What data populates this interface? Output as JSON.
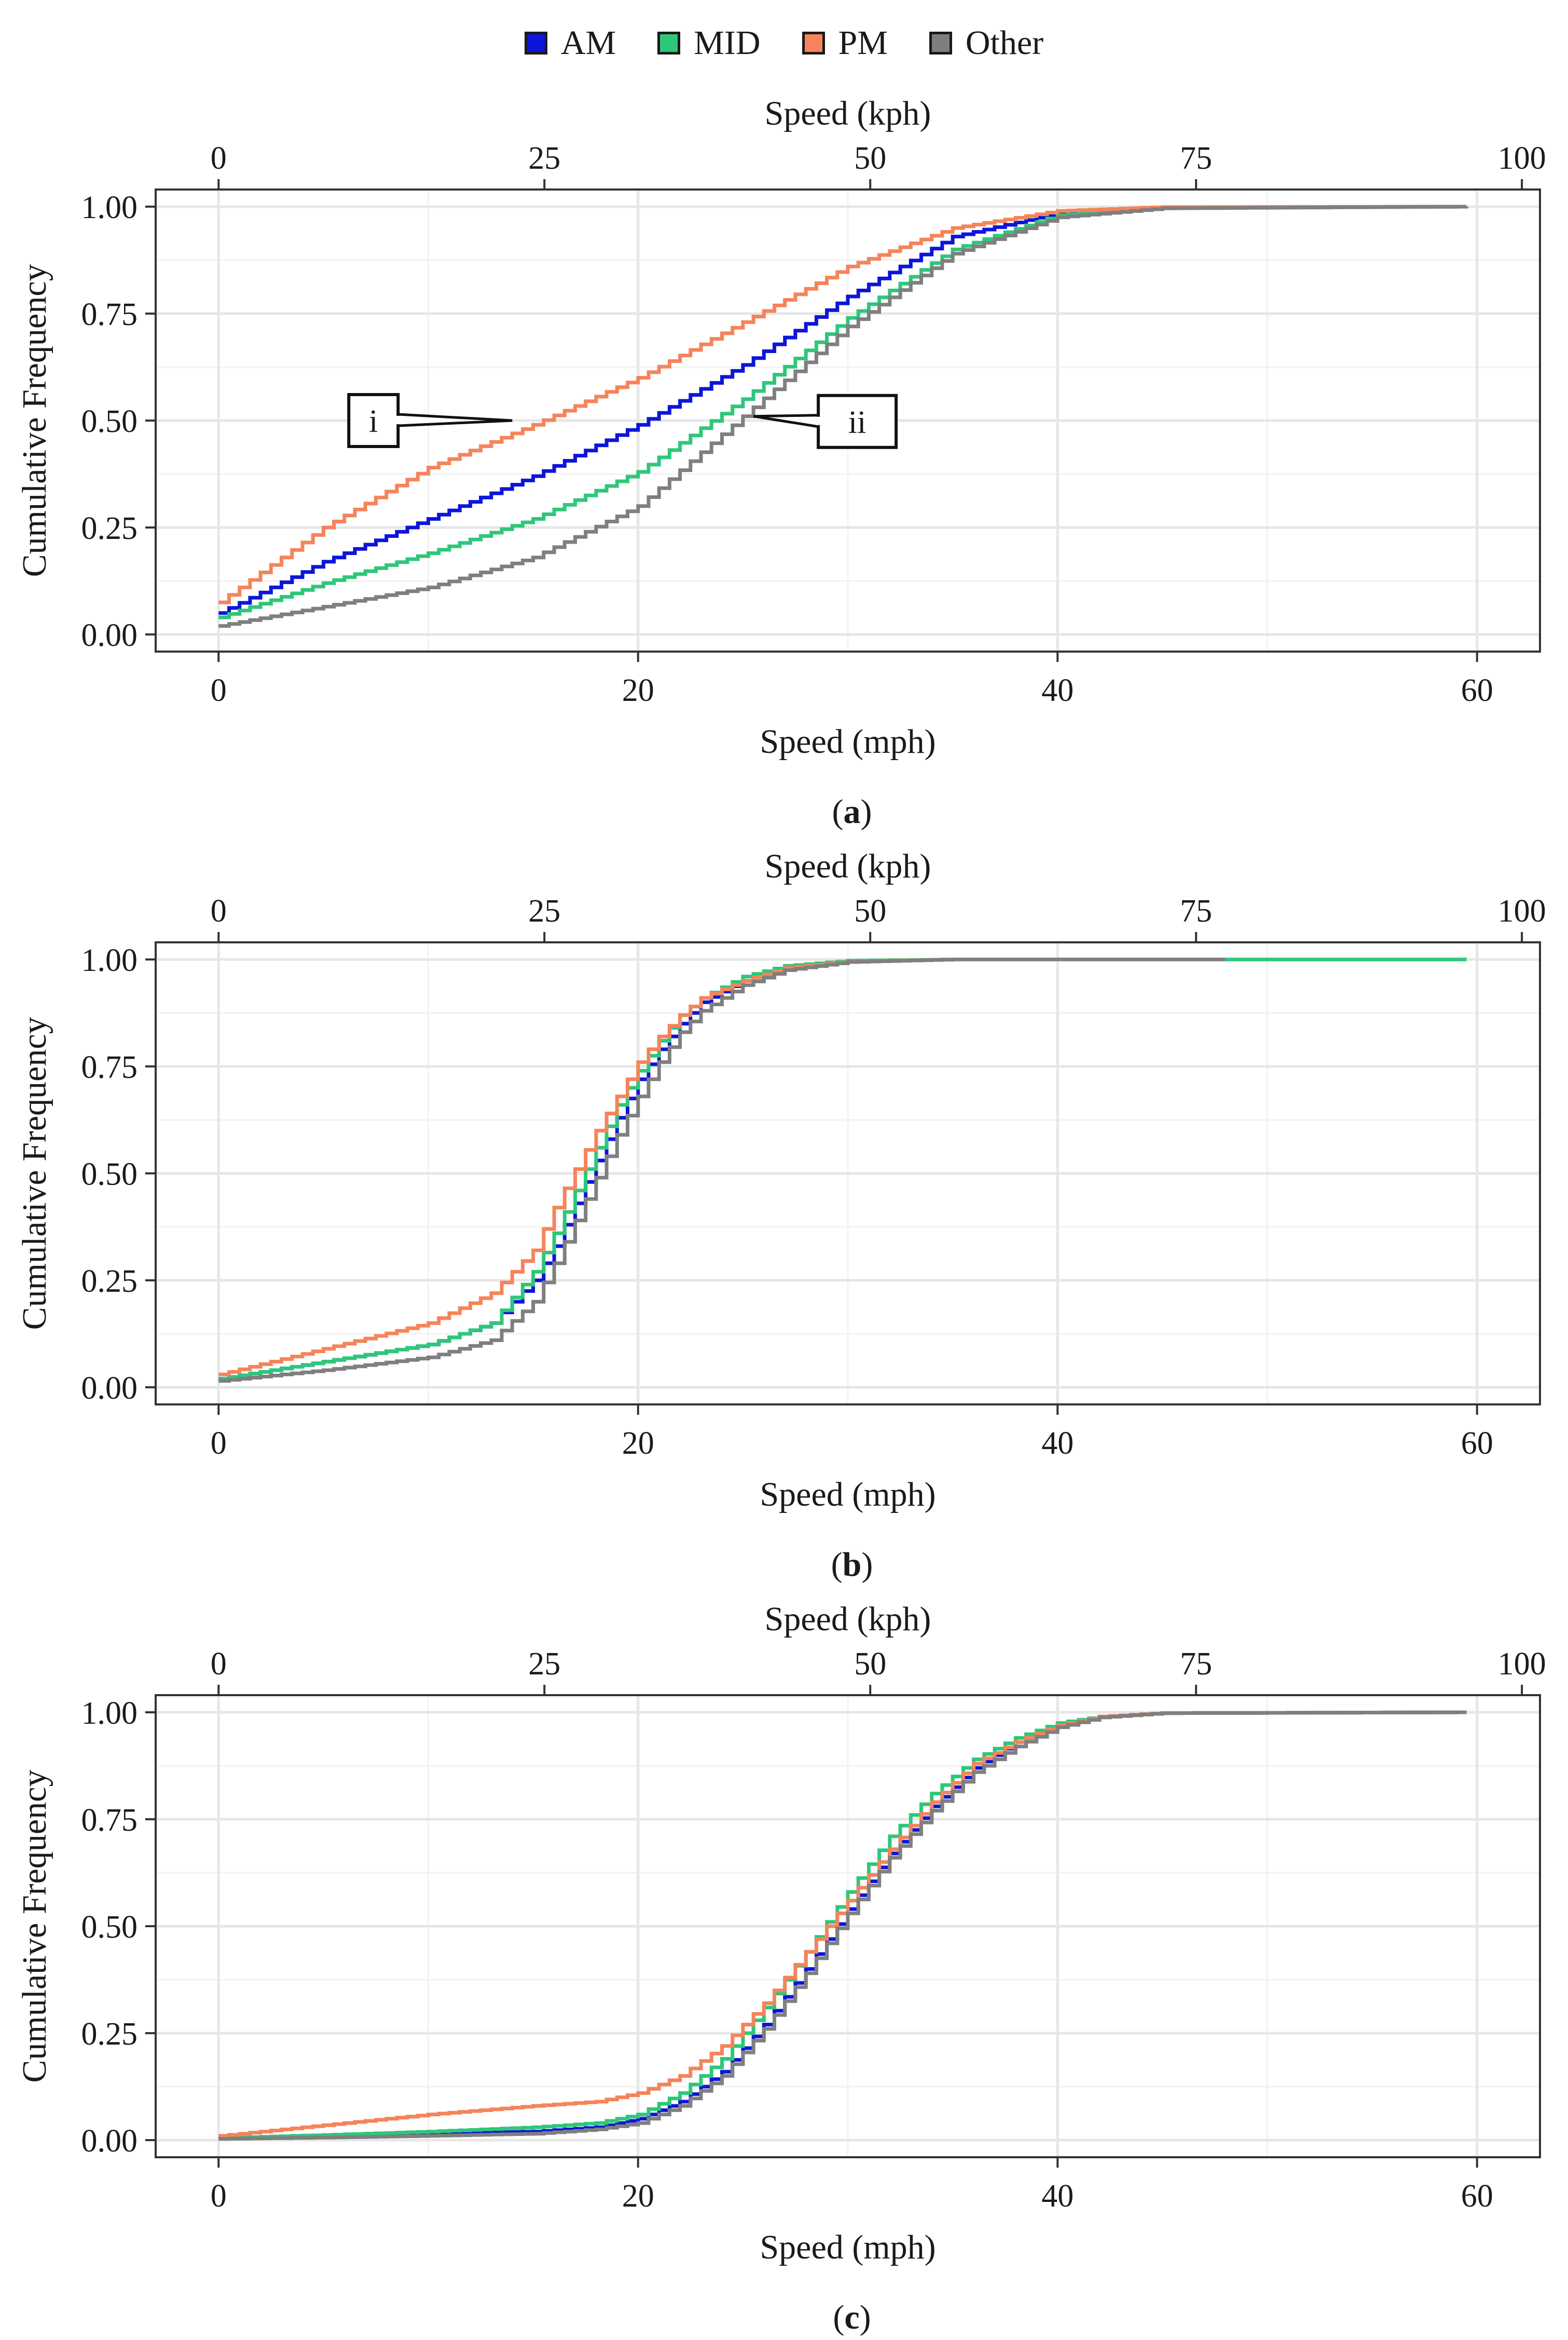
{
  "legend": {
    "items": [
      {
        "name": "AM",
        "color": "#0c15d9"
      },
      {
        "name": "MID",
        "color": "#2ec77a"
      },
      {
        "name": "PM",
        "color": "#f5845a"
      },
      {
        "name": "Other",
        "color": "#7f7f7f"
      }
    ]
  },
  "chart_data": [
    {
      "type": "line",
      "panel_label": "a",
      "title": "",
      "xlabel": "Speed (mph)",
      "ylabel": "Cumulative Frequency",
      "x2label": "Speed (kph)",
      "xlim": [
        -3,
        63
      ],
      "ylim": [
        -0.04,
        1.04
      ],
      "x_ticks": [
        "0",
        "20",
        "40",
        "60"
      ],
      "y_ticks": [
        "0.00",
        "0.25",
        "0.50",
        "0.75",
        "1.00"
      ],
      "x2_ticks": [
        "0",
        "25",
        "50",
        "75",
        "100"
      ],
      "x_max": 59.5,
      "grid": true,
      "legend_position": "top",
      "series": [
        {
          "name": "AM",
          "x": [
            0,
            5,
            10,
            15,
            20,
            25,
            30,
            35,
            40,
            45,
            59.5
          ],
          "values": [
            0.05,
            0.17,
            0.27,
            0.37,
            0.49,
            0.63,
            0.79,
            0.93,
            0.985,
            0.998,
            1.0
          ]
        },
        {
          "name": "MID",
          "x": [
            0,
            5,
            10,
            15,
            20,
            25,
            30,
            35,
            40,
            45,
            59.5
          ],
          "values": [
            0.04,
            0.12,
            0.19,
            0.27,
            0.38,
            0.55,
            0.74,
            0.9,
            0.98,
            0.997,
            1.0
          ]
        },
        {
          "name": "PM",
          "x": [
            0,
            5,
            10,
            15,
            20,
            25,
            30,
            35,
            40,
            45,
            59.5
          ],
          "values": [
            0.075,
            0.25,
            0.39,
            0.49,
            0.6,
            0.73,
            0.86,
            0.95,
            0.99,
            0.999,
            1.0
          ]
        },
        {
          "name": "Other",
          "x": [
            0,
            5,
            10,
            15,
            20,
            25,
            30,
            35,
            40,
            45,
            59.5
          ],
          "values": [
            0.02,
            0.065,
            0.11,
            0.18,
            0.3,
            0.51,
            0.72,
            0.89,
            0.975,
            0.996,
            1.0
          ]
        }
      ],
      "annotations": [
        {
          "text": "i",
          "x": 14,
          "y": 0.5
        },
        {
          "text": "ii",
          "x": 25.5,
          "y": 0.51
        }
      ]
    },
    {
      "type": "line",
      "panel_label": "b",
      "title": "",
      "xlabel": "Speed (mph)",
      "ylabel": "Cumulative Frequency",
      "x2label": "Speed (kph)",
      "xlim": [
        -3,
        63
      ],
      "ylim": [
        -0.04,
        1.04
      ],
      "x_ticks": [
        "0",
        "20",
        "40",
        "60"
      ],
      "y_ticks": [
        "0.00",
        "0.25",
        "0.50",
        "0.75",
        "1.00"
      ],
      "x2_ticks": [
        "0",
        "25",
        "50",
        "75",
        "100"
      ],
      "x_max": 59.5,
      "grid": true,
      "legend_position": "top",
      "series": [
        {
          "name": "AM",
          "x": [
            0,
            5,
            10,
            13,
            15,
            16,
            17,
            18,
            19,
            20,
            21,
            22,
            23,
            25,
            27,
            30,
            35,
            59.5
          ],
          "values": [
            0.02,
            0.06,
            0.1,
            0.15,
            0.25,
            0.33,
            0.43,
            0.53,
            0.63,
            0.72,
            0.79,
            0.85,
            0.9,
            0.95,
            0.98,
            0.995,
            1.0,
            1.0
          ]
        },
        {
          "name": "MID",
          "x": [
            0,
            5,
            10,
            13,
            15,
            16,
            17,
            18,
            19,
            20,
            21,
            22,
            23,
            25,
            27,
            30,
            35,
            59.5
          ],
          "values": [
            0.02,
            0.06,
            0.1,
            0.15,
            0.27,
            0.36,
            0.46,
            0.56,
            0.66,
            0.74,
            0.81,
            0.87,
            0.91,
            0.96,
            0.985,
            0.997,
            1.0,
            1.0
          ]
        },
        {
          "name": "PM",
          "x": [
            0,
            5,
            10,
            13,
            15,
            16,
            17,
            18,
            19,
            20,
            21,
            22,
            23,
            25,
            27,
            30,
            35,
            46
          ],
          "values": [
            0.03,
            0.09,
            0.15,
            0.22,
            0.32,
            0.42,
            0.51,
            0.6,
            0.68,
            0.76,
            0.82,
            0.87,
            0.91,
            0.95,
            0.98,
            0.995,
            1.0,
            1.0
          ]
        },
        {
          "name": "Other",
          "x": [
            0,
            5,
            10,
            13,
            15,
            16,
            17,
            18,
            19,
            20,
            21,
            22,
            23,
            25,
            27,
            30,
            35,
            48
          ],
          "values": [
            0.015,
            0.04,
            0.07,
            0.11,
            0.2,
            0.29,
            0.39,
            0.49,
            0.59,
            0.68,
            0.76,
            0.83,
            0.88,
            0.94,
            0.975,
            0.994,
            1.0,
            1.0
          ]
        }
      ],
      "annotations": []
    },
    {
      "type": "line",
      "panel_label": "c",
      "title": "",
      "xlabel": "Speed (mph)",
      "ylabel": "Cumulative Frequency",
      "x2label": "Speed (kph)",
      "xlim": [
        -3,
        63
      ],
      "ylim": [
        -0.04,
        1.04
      ],
      "x_ticks": [
        "0",
        "20",
        "40",
        "60"
      ],
      "y_ticks": [
        "0.00",
        "0.25",
        "0.50",
        "0.75",
        "1.00"
      ],
      "x2_ticks": [
        "0",
        "25",
        "50",
        "75",
        "100"
      ],
      "x_max": 59.5,
      "grid": true,
      "legend_position": "top",
      "series": [
        {
          "name": "AM",
          "x": [
            0,
            5,
            10,
            15,
            18,
            20,
            22,
            24,
            26,
            28,
            30,
            32,
            34,
            36,
            38,
            40,
            42,
            45,
            59.5
          ],
          "values": [
            0.005,
            0.01,
            0.015,
            0.02,
            0.03,
            0.05,
            0.09,
            0.16,
            0.27,
            0.4,
            0.54,
            0.67,
            0.78,
            0.87,
            0.93,
            0.97,
            0.99,
            0.998,
            1.0
          ]
        },
        {
          "name": "MID",
          "x": [
            0,
            5,
            10,
            15,
            18,
            20,
            22,
            24,
            26,
            28,
            30,
            32,
            34,
            36,
            38,
            40,
            42,
            45,
            59.5
          ],
          "values": [
            0.005,
            0.012,
            0.02,
            0.03,
            0.04,
            0.06,
            0.11,
            0.19,
            0.31,
            0.44,
            0.58,
            0.71,
            0.81,
            0.89,
            0.94,
            0.975,
            0.99,
            0.998,
            1.0
          ]
        },
        {
          "name": "PM",
          "x": [
            0,
            5,
            10,
            15,
            18,
            20,
            22,
            24,
            26,
            28,
            30,
            32,
            34,
            36,
            38,
            40,
            42,
            45,
            59.5
          ],
          "values": [
            0.01,
            0.035,
            0.06,
            0.08,
            0.09,
            0.11,
            0.15,
            0.22,
            0.32,
            0.44,
            0.56,
            0.68,
            0.79,
            0.88,
            0.93,
            0.97,
            0.99,
            0.998,
            1.0
          ]
        },
        {
          "name": "Other",
          "x": [
            0,
            5,
            10,
            15,
            18,
            20,
            22,
            24,
            26,
            28,
            30,
            32,
            34,
            36,
            38,
            40,
            42,
            45,
            59.5
          ],
          "values": [
            0.003,
            0.006,
            0.01,
            0.015,
            0.025,
            0.04,
            0.08,
            0.15,
            0.26,
            0.39,
            0.53,
            0.66,
            0.77,
            0.86,
            0.92,
            0.965,
            0.988,
            0.998,
            1.0
          ]
        }
      ],
      "annotations": []
    }
  ]
}
